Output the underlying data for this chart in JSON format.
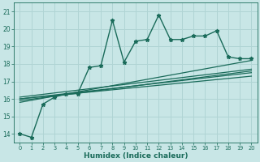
{
  "xlabel": "Humidex (Indice chaleur)",
  "ylabel": "",
  "xlim": [
    -0.5,
    20.5
  ],
  "ylim": [
    13.5,
    21.5
  ],
  "yticks": [
    14,
    15,
    16,
    17,
    18,
    19,
    20,
    21
  ],
  "xticks": [
    0,
    1,
    2,
    3,
    4,
    5,
    6,
    7,
    8,
    9,
    10,
    11,
    12,
    13,
    14,
    15,
    16,
    17,
    18,
    19,
    20
  ],
  "bg_color": "#c8e6e6",
  "grid_color": "#b0d4d4",
  "line_color": "#1a6b5a",
  "lines": [
    {
      "x": [
        0,
        1,
        2,
        3,
        4,
        5,
        6,
        7,
        8,
        9,
        10,
        11,
        12,
        13,
        14,
        15,
        16,
        17,
        18,
        19,
        20
      ],
      "y": [
        14.0,
        13.8,
        15.7,
        16.1,
        16.3,
        16.3,
        17.8,
        17.9,
        20.5,
        18.1,
        19.3,
        19.4,
        20.8,
        19.4,
        19.4,
        19.6,
        19.6,
        19.9,
        18.4,
        18.3,
        18.3
      ],
      "marker": "*",
      "markersize": 3.5,
      "lw": 1.0,
      "zorder": 5
    },
    {
      "x": [
        0,
        20
      ],
      "y": [
        15.8,
        18.2
      ],
      "lw": 0.9,
      "zorder": 3
    },
    {
      "x": [
        0,
        20
      ],
      "y": [
        15.9,
        17.6
      ],
      "lw": 0.9,
      "zorder": 3
    },
    {
      "x": [
        0,
        20
      ],
      "y": [
        16.0,
        17.3
      ],
      "lw": 0.9,
      "zorder": 3
    },
    {
      "x": [
        0,
        20
      ],
      "y": [
        16.0,
        17.5
      ],
      "lw": 0.9,
      "zorder": 3
    },
    {
      "x": [
        0,
        20
      ],
      "y": [
        16.1,
        17.7
      ],
      "lw": 0.9,
      "zorder": 3
    }
  ]
}
